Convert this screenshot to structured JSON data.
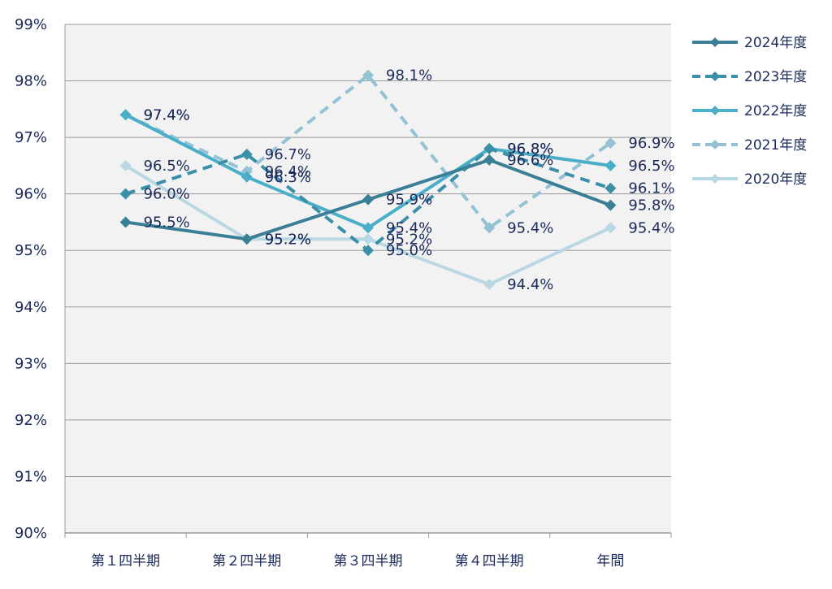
{
  "chart_data": {
    "type": "line",
    "categories": [
      "第１四半期",
      "第２四半期",
      "第３四半期",
      "第４四半期",
      "年間"
    ],
    "ylim": [
      90,
      99
    ],
    "yticks": [
      "90%",
      "91%",
      "92%",
      "93%",
      "94%",
      "95%",
      "96%",
      "97%",
      "98%",
      "99%"
    ],
    "grid": true,
    "legend_position": "right",
    "series": [
      {
        "name": "2024年度",
        "values": [
          95.5,
          95.2,
          95.9,
          96.6,
          95.8
        ],
        "labels": [
          "95.5%",
          "95.2%",
          "95.9%",
          "96.6%",
          "95.8%"
        ],
        "color": "#3a7f96",
        "dash": "solid"
      },
      {
        "name": "2023年度",
        "values": [
          96.0,
          96.7,
          95.0,
          96.8,
          96.1
        ],
        "labels": [
          "96.0%",
          "96.7%",
          "95.0%",
          "96.8%",
          "96.1%"
        ],
        "color": "#3b8fa8",
        "dash": "dashed"
      },
      {
        "name": "2022年度",
        "values": [
          97.4,
          96.3,
          95.4,
          96.8,
          96.5
        ],
        "labels": [
          "97.4%",
          "96.3%",
          "95.4%",
          "96.8%",
          "96.5%"
        ],
        "color": "#4aaec9",
        "dash": "solid"
      },
      {
        "name": "2021年度",
        "values": [
          97.4,
          96.4,
          98.1,
          95.4,
          96.9
        ],
        "labels": [
          "97.4%",
          "96.4%",
          "98.1%",
          "95.4%",
          "96.9%"
        ],
        "color": "#92c2d4",
        "dash": "dashed"
      },
      {
        "name": "2020年度",
        "values": [
          96.5,
          95.2,
          95.2,
          94.4,
          95.4
        ],
        "labels": [
          "96.5%",
          "95.2%",
          "95.2%",
          "94.4%",
          "95.4%"
        ],
        "color": "#b9d8e3",
        "dash": "solid"
      }
    ]
  }
}
